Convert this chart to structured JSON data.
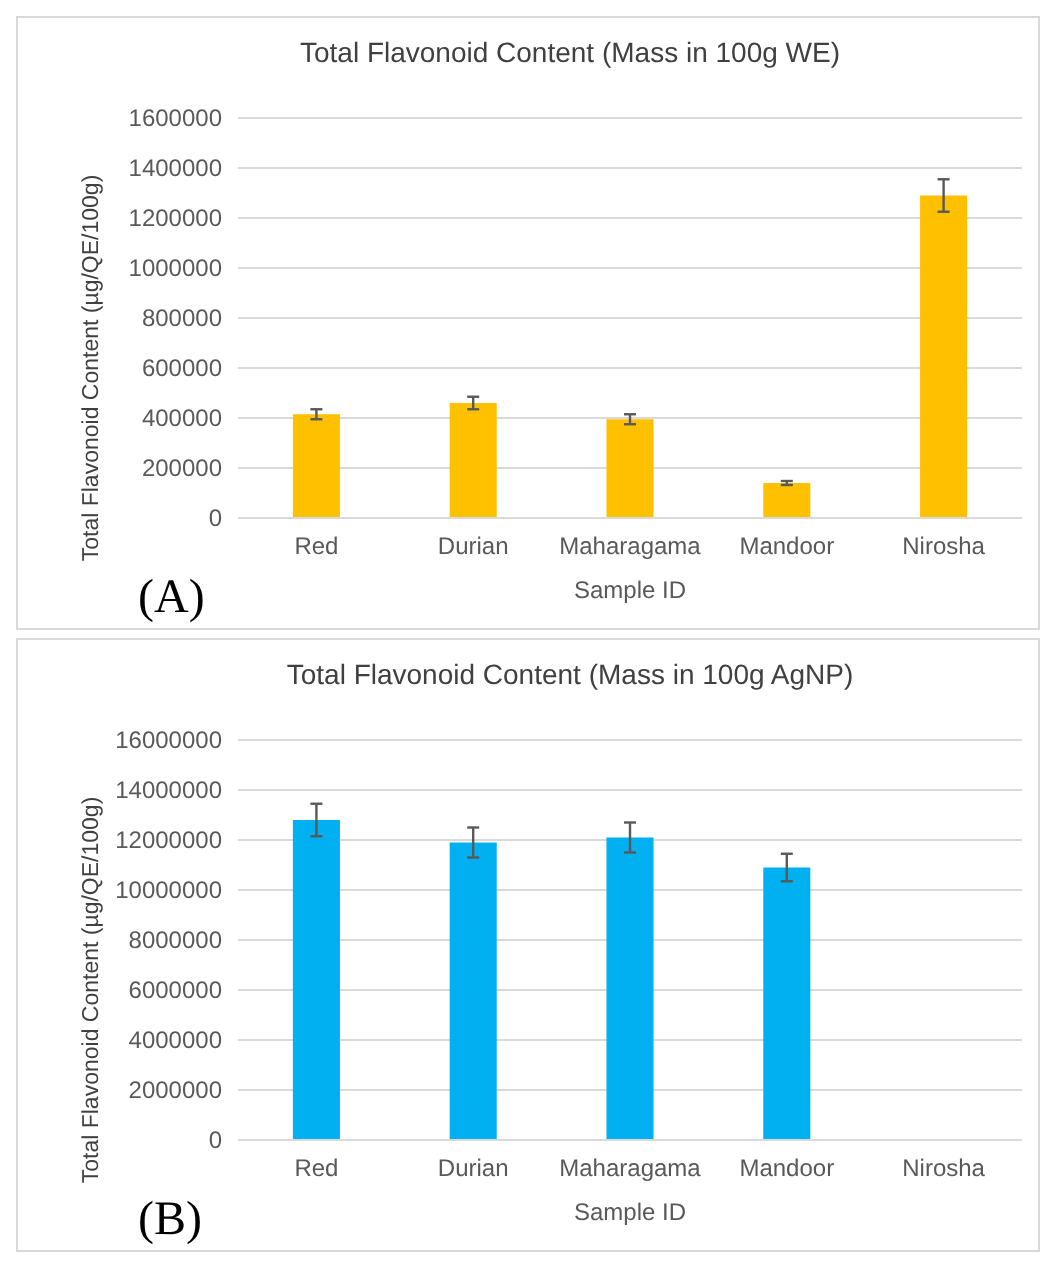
{
  "chart_data": [
    {
      "type": "bar",
      "title": "Total Flavonoid Content (Mass in 100g WE)",
      "xlabel": "Sample ID",
      "ylabel": "Total Flavonoid Content (µg/QE/100g)",
      "categories": [
        "Red",
        "Durian",
        "Maharagama",
        "Mandoor",
        "Nirosha"
      ],
      "values": [
        415000,
        460000,
        395000,
        140000,
        1290000
      ],
      "errors": [
        20000,
        25000,
        20000,
        8000,
        65000
      ],
      "color": "#ffc000",
      "ylim": [
        0,
        1600000
      ],
      "yticks": [
        0,
        200000,
        400000,
        600000,
        800000,
        1000000,
        1200000,
        1400000,
        1600000
      ],
      "grid": "y",
      "annotations": [
        "(A)"
      ]
    },
    {
      "type": "bar",
      "title": "Total Flavonoid Content (Mass in 100g AgNP)",
      "xlabel": "Sample ID",
      "ylabel": "Total Flavonoid Content (µg/QE/100g)",
      "categories": [
        "Red",
        "Durian",
        "Maharagama",
        "Mandoor",
        "Nirosha"
      ],
      "values": [
        12800000,
        11900000,
        12100000,
        10900000,
        null
      ],
      "errors": [
        650000,
        600000,
        600000,
        550000,
        null
      ],
      "color": "#00b0f0",
      "ylim": [
        0,
        16000000
      ],
      "yticks": [
        0,
        2000000,
        4000000,
        6000000,
        8000000,
        10000000,
        12000000,
        14000000,
        16000000
      ],
      "grid": "y",
      "annotations": [
        "(B)"
      ]
    }
  ]
}
